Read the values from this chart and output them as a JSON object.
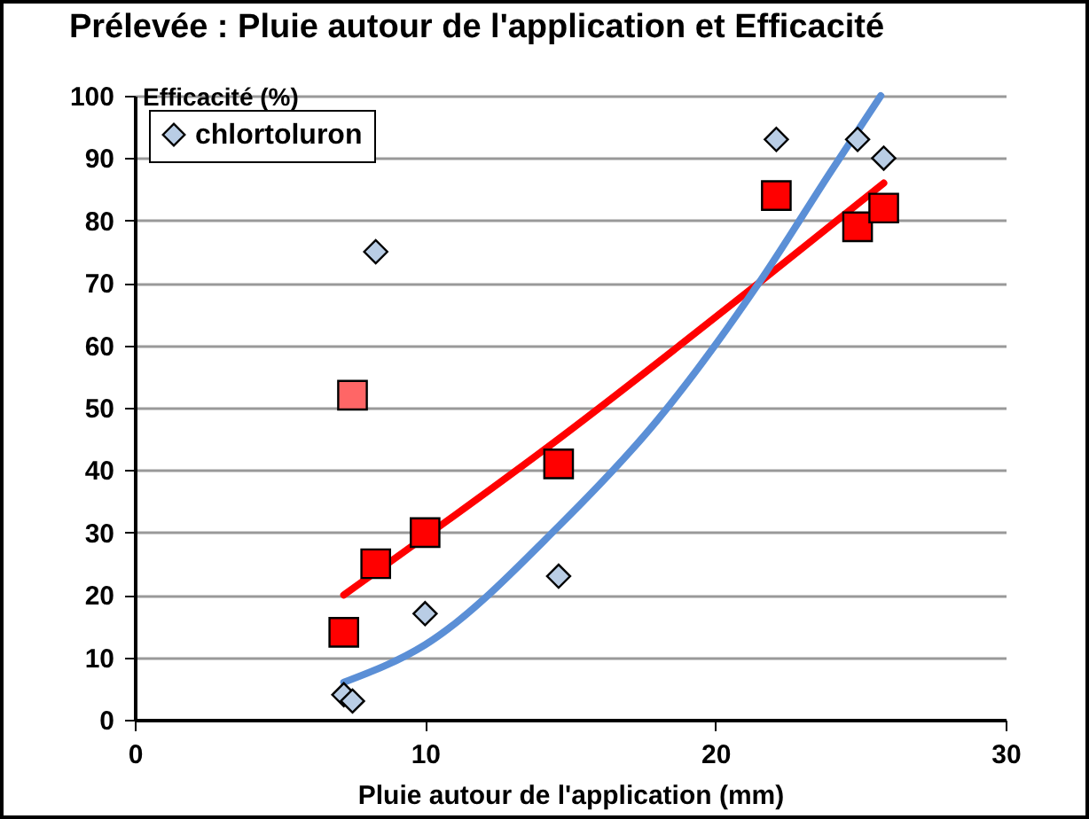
{
  "chart_data": {
    "type": "scatter",
    "title": "Prélevée : Pluie autour de l'application et Efficacité",
    "xlabel": "Pluie autour de l'application (mm)",
    "ylabel": "Efficacité (%)",
    "xlim": [
      0,
      30
    ],
    "xticks": [
      0,
      10,
      20,
      30
    ],
    "ylim": [
      0,
      100
    ],
    "yticks": [
      0,
      10,
      20,
      30,
      40,
      50,
      60,
      70,
      80,
      90,
      100
    ],
    "grid": "y",
    "legend": "top left",
    "series": [
      {
        "type": "line",
        "color": "#ff0000",
        "x": [
          7.2,
          14.6,
          21.5,
          25.8
        ],
        "values": [
          20,
          45,
          70,
          86
        ]
      },
      {
        "type": "line",
        "color": "#5b8fd6",
        "x": [
          7.2,
          10,
          14.6,
          18,
          21.5,
          24,
          25.7
        ],
        "values": [
          6,
          12,
          31,
          48,
          70,
          88,
          100
        ]
      },
      {
        "marker": "square",
        "color": "#ff0000",
        "x": [
          7.2,
          8.3,
          10,
          14.6,
          22.1,
          24.9,
          25.8
        ],
        "values": [
          14,
          25,
          30,
          41,
          84,
          79,
          82
        ]
      },
      {
        "marker": "square",
        "color": "#ff6666",
        "x": [
          7.5
        ],
        "values": [
          52
        ]
      },
      {
        "name": "chlortoluron",
        "marker": "diamond",
        "color": "#b9cde5",
        "x": [
          7.2,
          7.5,
          8.3,
          10,
          14.6,
          22.1,
          24.9,
          25.8
        ],
        "values": [
          4,
          3,
          75,
          17,
          23,
          93,
          93,
          90
        ]
      }
    ]
  }
}
